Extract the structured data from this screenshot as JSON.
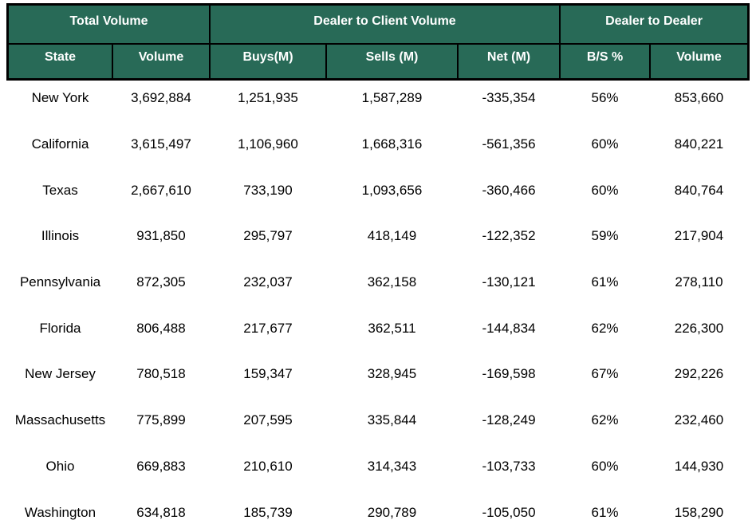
{
  "colors": {
    "header_bg": "#286A57",
    "header_text": "#FFFFFF",
    "border": "#000000",
    "body_bg": "#FFFFFF",
    "body_text": "#000000"
  },
  "chart_data": {
    "type": "table",
    "title": "",
    "legend_position": "none",
    "grid": false,
    "column_groups": [
      {
        "label": "Total Volume",
        "span": 2
      },
      {
        "label": "Dealer to Client Volume",
        "span": 3
      },
      {
        "label": "Dealer to Dealer",
        "span": 2
      }
    ],
    "columns": [
      "State",
      "Volume",
      "Buys(M)",
      "Sells (M)",
      "Net (M)",
      "B/S %",
      "Volume"
    ],
    "rows": [
      [
        "New York",
        "3,692,884",
        "1,251,935",
        "1,587,289",
        "-335,354",
        "56%",
        "853,660"
      ],
      [
        "California",
        "3,615,497",
        "1,106,960",
        "1,668,316",
        "-561,356",
        "60%",
        "840,221"
      ],
      [
        "Texas",
        "2,667,610",
        "733,190",
        "1,093,656",
        "-360,466",
        "60%",
        "840,764"
      ],
      [
        "Illinois",
        "931,850",
        "295,797",
        "418,149",
        "-122,352",
        "59%",
        "217,904"
      ],
      [
        "Pennsylvania",
        "872,305",
        "232,037",
        "362,158",
        "-130,121",
        "61%",
        "278,110"
      ],
      [
        "Florida",
        "806,488",
        "217,677",
        "362,511",
        "-144,834",
        "62%",
        "226,300"
      ],
      [
        "New Jersey",
        "780,518",
        "159,347",
        "328,945",
        "-169,598",
        "67%",
        "292,226"
      ],
      [
        "Massachusetts",
        "775,899",
        "207,595",
        "335,844",
        "-128,249",
        "62%",
        "232,460"
      ],
      [
        "Ohio",
        "669,883",
        "210,610",
        "314,343",
        "-103,733",
        "60%",
        "144,930"
      ],
      [
        "Washington",
        "634,818",
        "185,739",
        "290,789",
        "-105,050",
        "61%",
        "158,290"
      ]
    ]
  }
}
